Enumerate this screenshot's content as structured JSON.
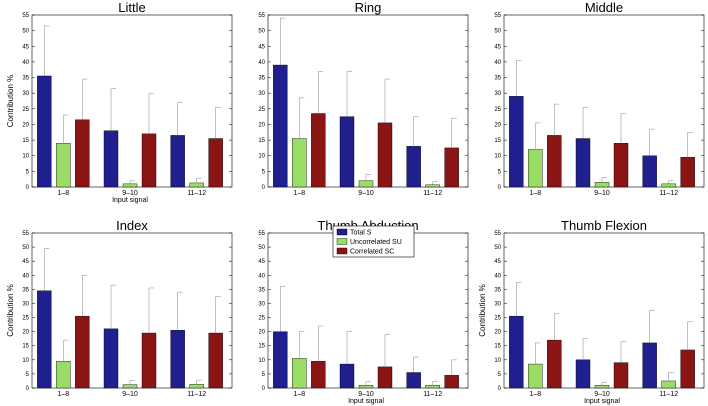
{
  "colors": {
    "total": "#1f1f8f",
    "uncorrelated": "#99dd66",
    "correlated": "#8b1515",
    "error": "#999999",
    "axis": "#000000"
  },
  "legend": {
    "placement": "top-center of Thumb Abduction panel",
    "labels": [
      "Total S",
      "Uncorrelated SU",
      "Correlated SC"
    ]
  },
  "chart_data": [
    {
      "type": "bar",
      "title": "Little",
      "xlabel": "Input signal",
      "ylabel": "Contribution %",
      "ylim": [
        0,
        55
      ],
      "yticks": [
        "0",
        "5",
        "10",
        "15",
        "20",
        "25",
        "30",
        "35",
        "40",
        "45",
        "50",
        "55"
      ],
      "categories": [
        "1–8",
        "9–10",
        "11–12"
      ],
      "series": [
        {
          "name": "Total S",
          "values": [
            35.5,
            18,
            16.5
          ],
          "errors": [
            16,
            13.5,
            10.5
          ]
        },
        {
          "name": "Uncorrelated SU",
          "values": [
            14,
            1,
            1.3
          ],
          "errors": [
            9,
            1,
            1.5
          ]
        },
        {
          "name": "Correlated SC",
          "values": [
            21.5,
            17,
            15.5
          ],
          "errors": [
            13,
            13,
            10
          ]
        }
      ]
    },
    {
      "type": "bar",
      "title": "Ring",
      "xlabel": "",
      "ylabel": "",
      "ylim": [
        0,
        55
      ],
      "yticks": [
        "0",
        "5",
        "10",
        "15",
        "20",
        "25",
        "30",
        "35",
        "40",
        "45",
        "50",
        "55"
      ],
      "categories": [
        "1–8",
        "9–10",
        "11–12"
      ],
      "series": [
        {
          "name": "Total S",
          "values": [
            39,
            22.5,
            13
          ],
          "errors": [
            15,
            14.5,
            9.5
          ]
        },
        {
          "name": "Uncorrelated SU",
          "values": [
            15.5,
            2,
            0.7
          ],
          "errors": [
            13,
            2,
            1
          ]
        },
        {
          "name": "Correlated SC",
          "values": [
            23.5,
            20.5,
            12.5
          ],
          "errors": [
            13.5,
            14,
            9.5
          ]
        }
      ]
    },
    {
      "type": "bar",
      "title": "Middle",
      "xlabel": "",
      "ylabel": "",
      "ylim": [
        0,
        55
      ],
      "yticks": [
        "0",
        "5",
        "10",
        "15",
        "20",
        "25",
        "30",
        "35",
        "40",
        "45",
        "50",
        "55"
      ],
      "categories": [
        "1–8",
        "9–10",
        "11–12"
      ],
      "series": [
        {
          "name": "Total S",
          "values": [
            29,
            15.5,
            10
          ],
          "errors": [
            11.5,
            10,
            8.5
          ]
        },
        {
          "name": "Uncorrelated SU",
          "values": [
            12,
            1.5,
            1
          ],
          "errors": [
            8.5,
            1.5,
            1
          ]
        },
        {
          "name": "Correlated SC",
          "values": [
            16.5,
            14,
            9.5
          ],
          "errors": [
            10,
            9.5,
            8
          ]
        }
      ]
    },
    {
      "type": "bar",
      "title": "Index",
      "xlabel": "",
      "ylabel": "Contribution %",
      "ylim": [
        0,
        55
      ],
      "yticks": [
        "0",
        "5",
        "10",
        "15",
        "20",
        "25",
        "30",
        "35",
        "40",
        "45",
        "50",
        "55"
      ],
      "categories": [
        "1–8",
        "9–10",
        "11–12"
      ],
      "series": [
        {
          "name": "Total S",
          "values": [
            34.5,
            21,
            20.5
          ],
          "errors": [
            15,
            15.5,
            13.5
          ]
        },
        {
          "name": "Uncorrelated SU",
          "values": [
            9.5,
            1.2,
            1.3
          ],
          "errors": [
            7.5,
            1.5,
            1.5
          ]
        },
        {
          "name": "Correlated SC",
          "values": [
            25.5,
            19.5,
            19.5
          ],
          "errors": [
            14.5,
            16,
            13
          ]
        }
      ]
    },
    {
      "type": "bar",
      "title": "Thumb Abduction",
      "xlabel": "Input signal",
      "ylabel": "",
      "ylim": [
        0,
        55
      ],
      "yticks": [
        "0",
        "5",
        "10",
        "15",
        "20",
        "25",
        "30",
        "35",
        "40",
        "45",
        "50",
        "55"
      ],
      "categories": [
        "1–8",
        "9–10",
        "11–12"
      ],
      "series": [
        {
          "name": "Total S",
          "values": [
            20,
            8.5,
            5.5
          ],
          "errors": [
            16,
            11.5,
            5.5
          ]
        },
        {
          "name": "Uncorrelated SU",
          "values": [
            10.5,
            1,
            1
          ],
          "errors": [
            9.5,
            1.2,
            1.3
          ]
        },
        {
          "name": "Correlated SC",
          "values": [
            9.5,
            7.5,
            4.5
          ],
          "errors": [
            12.5,
            11.5,
            5.5
          ]
        }
      ]
    },
    {
      "type": "bar",
      "title": "Thumb Flexion",
      "xlabel": "Input signal",
      "ylabel": "Contribution %",
      "ylim": [
        0,
        55
      ],
      "yticks": [
        "0",
        "5",
        "10",
        "15",
        "20",
        "25",
        "30",
        "35",
        "40",
        "45",
        "50",
        "55"
      ],
      "categories": [
        "1–8",
        "9–10",
        "11–12"
      ],
      "series": [
        {
          "name": "Total S",
          "values": [
            25.5,
            10,
            16
          ],
          "errors": [
            12,
            7.5,
            11.5
          ]
        },
        {
          "name": "Uncorrelated SU",
          "values": [
            8.5,
            1,
            2.5
          ],
          "errors": [
            7.5,
            1,
            3
          ]
        },
        {
          "name": "Correlated SC",
          "values": [
            17,
            9,
            13.5
          ],
          "errors": [
            9.5,
            7.5,
            10
          ]
        }
      ]
    }
  ]
}
